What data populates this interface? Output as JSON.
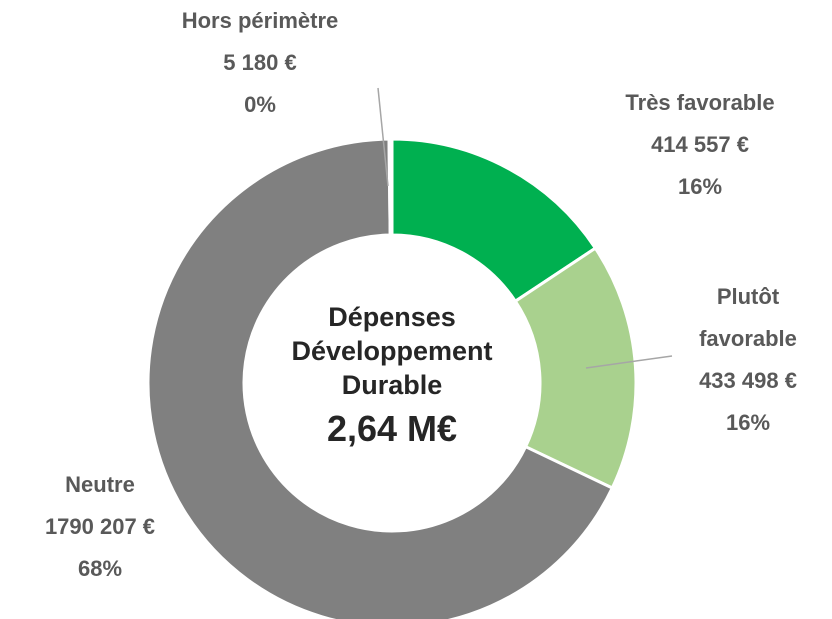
{
  "chart_data": {
    "type": "donut",
    "categories": [
      "Très favorable",
      "Plutôt favorable",
      "Neutre",
      "Hors périmètre"
    ],
    "values": [
      414557,
      433498,
      1790207,
      5180
    ],
    "value_labels": [
      "414 557 €",
      "433 498 €",
      "1790 207 €",
      "5 180 €"
    ],
    "share_labels": [
      "16%",
      "16%",
      "68%",
      "0%"
    ],
    "colors": [
      "#00b050",
      "#a9d18e",
      "#808080",
      "#bfbfbf"
    ],
    "center_title": "Dépenses Développement Durable",
    "center_value": "2,64 M€"
  }
}
